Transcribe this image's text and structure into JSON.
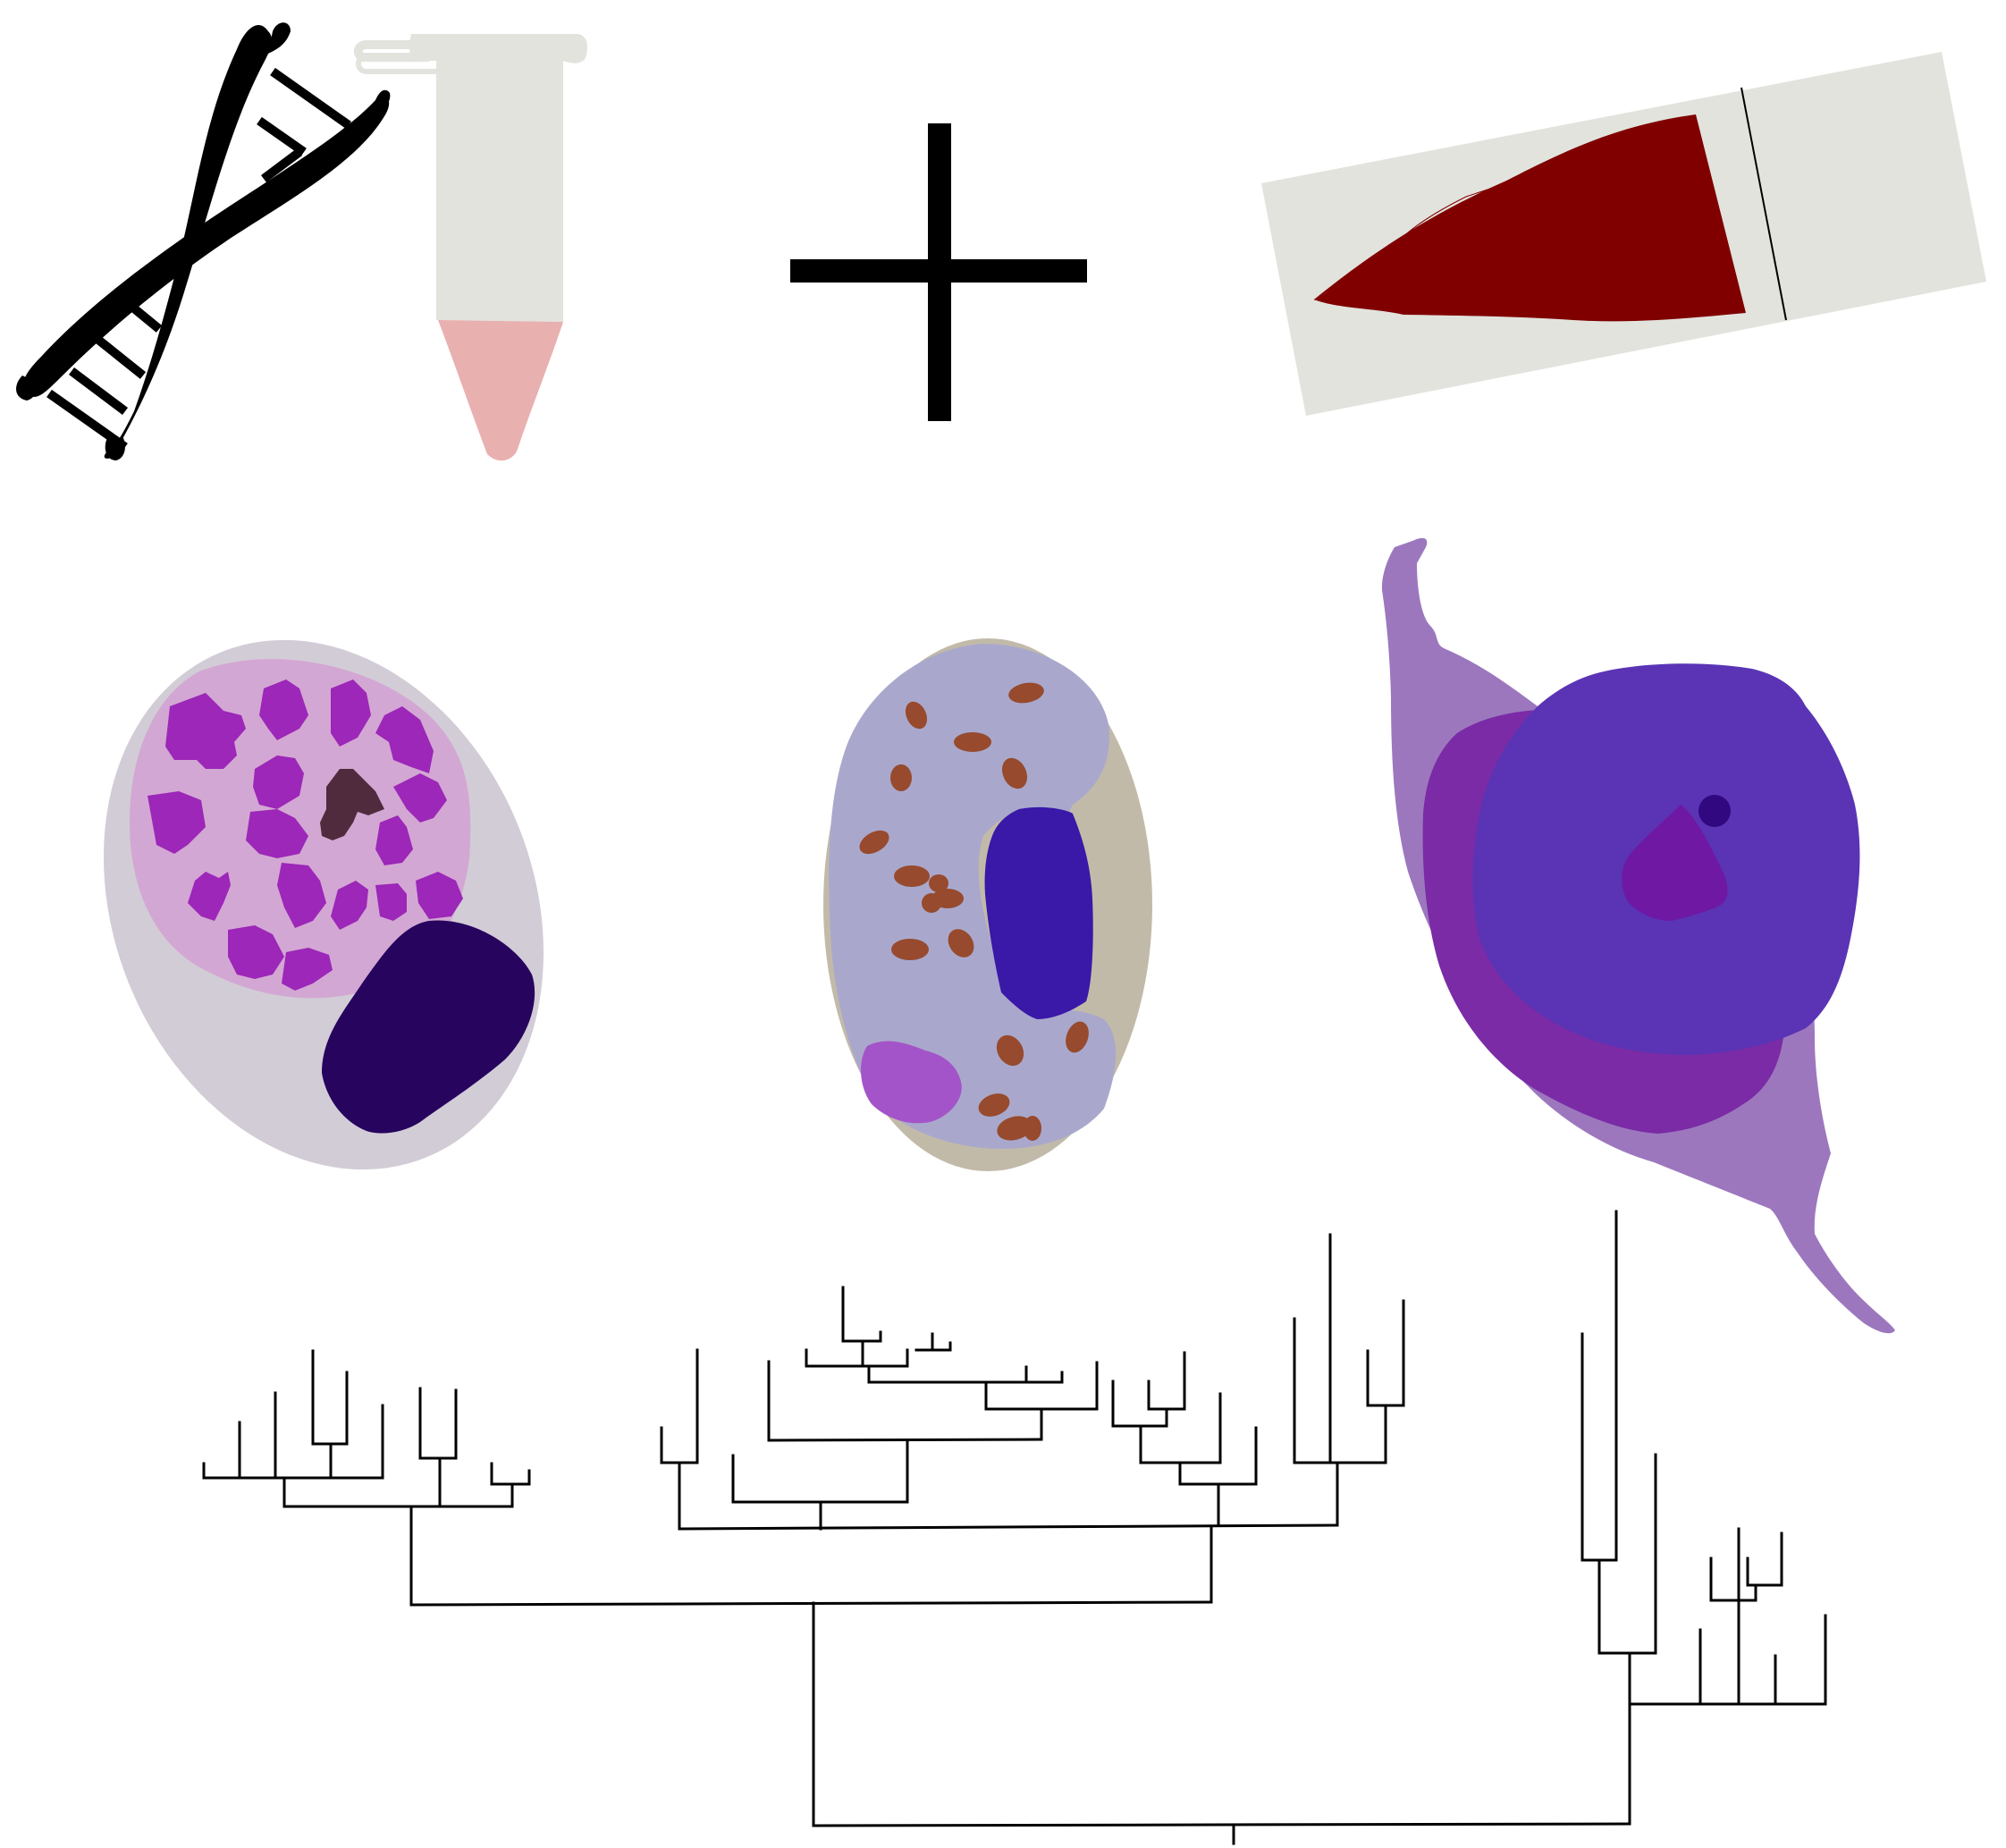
{
  "figure": {
    "background": "#ffffff",
    "panels": [
      {
        "id": "dna",
        "icon": "dna-double-helix-icon",
        "color": "#000000"
      },
      {
        "id": "tube",
        "icon": "microcentrifuge-tube-icon",
        "tube_color": "#e2e3dd",
        "liquid_color": "#e9b0b0"
      },
      {
        "id": "plus",
        "icon": "plus-sign-icon",
        "color": "#000000"
      },
      {
        "id": "slide",
        "icon": "blood-smear-slide-icon",
        "slide_color": "#e2e3dd",
        "smear_color": "#800000"
      },
      {
        "id": "cell1",
        "icon": "granulocyte-cell-icon",
        "outer_color": "#d2ccd6",
        "cytoplasm_color": "#d3a7d3",
        "granule_color": "#9c27b8",
        "nucleus_color": "#27045e"
      },
      {
        "id": "cell2",
        "icon": "eosinophil-like-cell-icon",
        "outer_color": "#c2baa9",
        "cytoplasm_color": "#a9a8cc",
        "granule_color": "#974a2d",
        "nucleus_color": "#3a18a8"
      },
      {
        "id": "cell3",
        "icon": "thrombocyte-like-cell-icon",
        "outer_color": "#9c77be",
        "mid_color": "#7a2ba5",
        "nucleus_color": "#5a34b5",
        "inner_color": "#6f18a3"
      },
      {
        "id": "tree",
        "icon": "phylogenetic-tree-icon",
        "color": "#000000"
      }
    ]
  }
}
